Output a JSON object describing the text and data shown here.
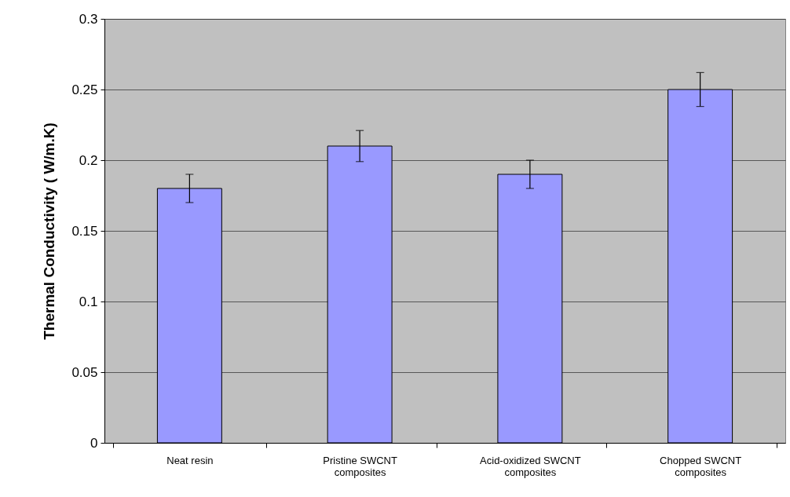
{
  "chart_data": {
    "type": "bar",
    "ylabel": "Thermal Conductivity ( W/m.K)",
    "categories": [
      "Neat resin",
      "Pristine SWCNT composites",
      "Acid-oxidized SWCNT composites",
      "Chopped SWCNT composites"
    ],
    "values": [
      0.18,
      0.21,
      0.19,
      0.25
    ],
    "errors": [
      0.01,
      0.011,
      0.01,
      0.012
    ],
    "color": "#9999ff",
    "ylim": [
      0,
      0.3
    ],
    "yticks": [
      0,
      0.05,
      0.1,
      0.15,
      0.2,
      0.25,
      0.3
    ],
    "grid": "y"
  }
}
